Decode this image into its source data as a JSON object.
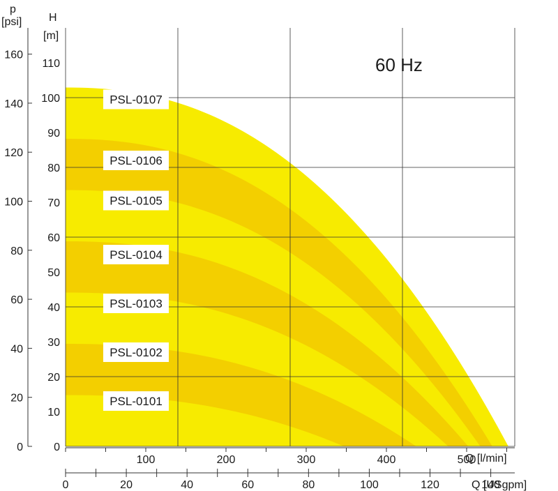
{
  "chart_data": {
    "type": "area",
    "annotation": "60 Hz",
    "colors": {
      "band_light": "#f7eb00",
      "band_dark": "#f3cf00",
      "grid": "#333333",
      "axis": "#333333"
    },
    "axes": {
      "head": {
        "symbol": "H",
        "unit": "[m]",
        "range": [
          0,
          120
        ],
        "ticks": [
          0,
          10,
          20,
          30,
          40,
          50,
          60,
          70,
          80,
          90,
          100,
          110
        ]
      },
      "pressure": {
        "symbol": "p",
        "unit": "[psi]",
        "range": [
          0,
          170.7
        ],
        "ticks": [
          0,
          20,
          40,
          60,
          80,
          100,
          120,
          140,
          160
        ]
      },
      "flow_lmin": {
        "label": "Q [l/min]",
        "range": [
          0,
          560
        ],
        "ticks": [
          100,
          200,
          300,
          400,
          500
        ]
      },
      "flow_usgpm": {
        "label": "Q [USgpm]",
        "range": [
          0,
          147.9
        ],
        "ticks": [
          0,
          20,
          40,
          60,
          80,
          100,
          120,
          140
        ]
      }
    },
    "series": [
      {
        "name": "PSL-0101",
        "shutoff_head": 14.7,
        "max_flow": 347
      },
      {
        "name": "PSL-0102",
        "shutoff_head": 29.4,
        "max_flow": 437
      },
      {
        "name": "PSL-0103",
        "shutoff_head": 44.1,
        "max_flow": 477
      },
      {
        "name": "PSL-0104",
        "shutoff_head": 58.8,
        "max_flow": 502
      },
      {
        "name": "PSL-0105",
        "shutoff_head": 73.5,
        "max_flow": 517
      },
      {
        "name": "PSL-0106",
        "shutoff_head": 88.2,
        "max_flow": 532
      },
      {
        "name": "PSL-0107",
        "shutoff_head": 102.9,
        "max_flow": 552
      }
    ],
    "curve_labels": [
      {
        "series": "PSL-0107",
        "head": 99.5
      },
      {
        "series": "PSL-0106",
        "head": 82.0
      },
      {
        "series": "PSL-0105",
        "head": 70.5
      },
      {
        "series": "PSL-0104",
        "head": 55.0
      },
      {
        "series": "PSL-0103",
        "head": 41.0
      },
      {
        "series": "PSL-0102",
        "head": 27.0
      },
      {
        "series": "PSL-0101",
        "head": 13.0
      }
    ]
  }
}
